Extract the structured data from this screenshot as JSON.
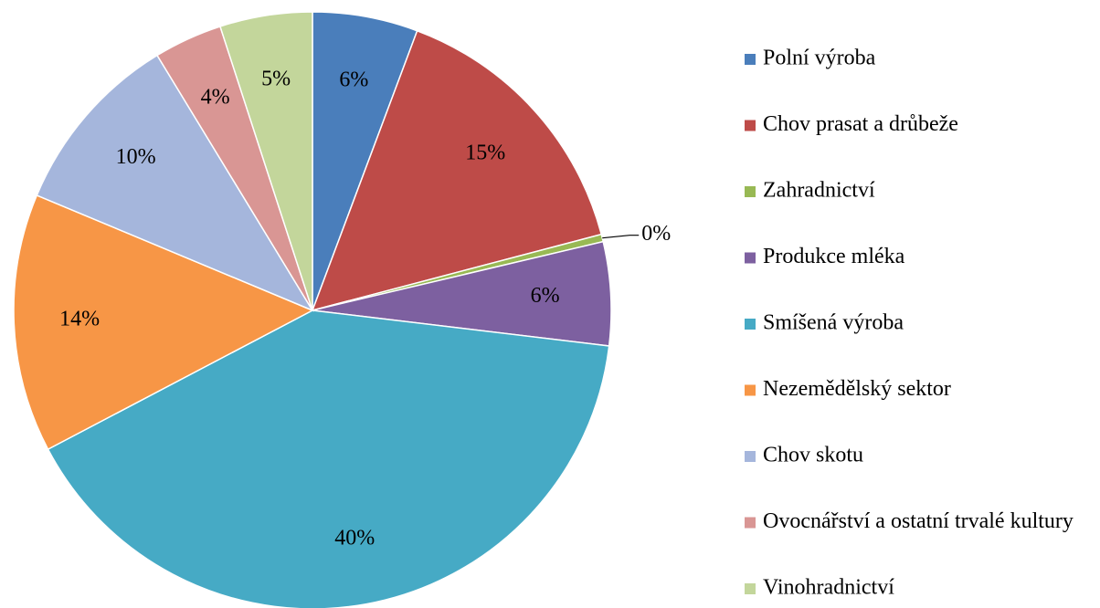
{
  "chart_data": {
    "type": "pie",
    "categories": [
      "Polní výroba",
      "Chov prasat a drůbeže",
      "Zahradnictví",
      "Produkce mléka",
      "Smíšená výroba",
      "Nezemědělský sektor",
      "Chov skotu",
      "Ovocnářství a ostatní trvalé kultury",
      "Vinohradnictví"
    ],
    "values": [
      5.7,
      15.2,
      0.4,
      5.6,
      40.4,
      14.0,
      10.0,
      3.7,
      5.0
    ],
    "value_labels": [
      "6%",
      "15%",
      "0%",
      "6%",
      "40%",
      "14%",
      "10%",
      "4%",
      "5%"
    ],
    "colors": [
      "#4a7ebb",
      "#be4b48",
      "#98b954",
      "#7d60a0",
      "#46aac5",
      "#f79646",
      "#a5b6dc",
      "#d99694",
      "#c3d69b"
    ],
    "legend": "right"
  }
}
